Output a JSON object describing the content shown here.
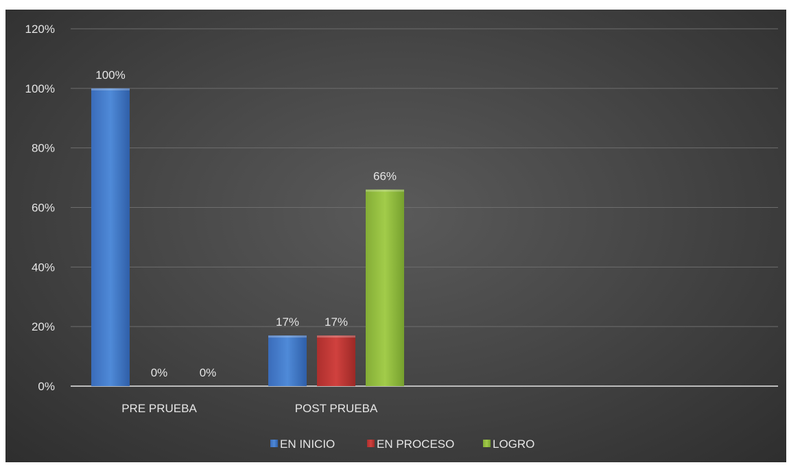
{
  "chart_data": {
    "type": "bar",
    "categories": [
      "PRE PRUEBA",
      "POST PRUEBA"
    ],
    "series": [
      {
        "name": "EN INICIO",
        "values": [
          100,
          17
        ],
        "color": "#4a7fd0"
      },
      {
        "name": "EN PROCESO",
        "values": [
          0,
          17
        ],
        "color": "#c23a38"
      },
      {
        "name": "LOGRO",
        "values": [
          0,
          66
        ],
        "color": "#94c03f"
      }
    ],
    "data_labels": [
      [
        "100%",
        "0%",
        "0%"
      ],
      [
        "17%",
        "17%",
        "66%"
      ]
    ],
    "yticks": [
      "0%",
      "20%",
      "40%",
      "60%",
      "80%",
      "100%",
      "120%"
    ],
    "ylim": [
      0,
      120
    ],
    "grid": true,
    "legend_position": "bottom",
    "title": "",
    "xlabel": "",
    "ylabel": ""
  }
}
